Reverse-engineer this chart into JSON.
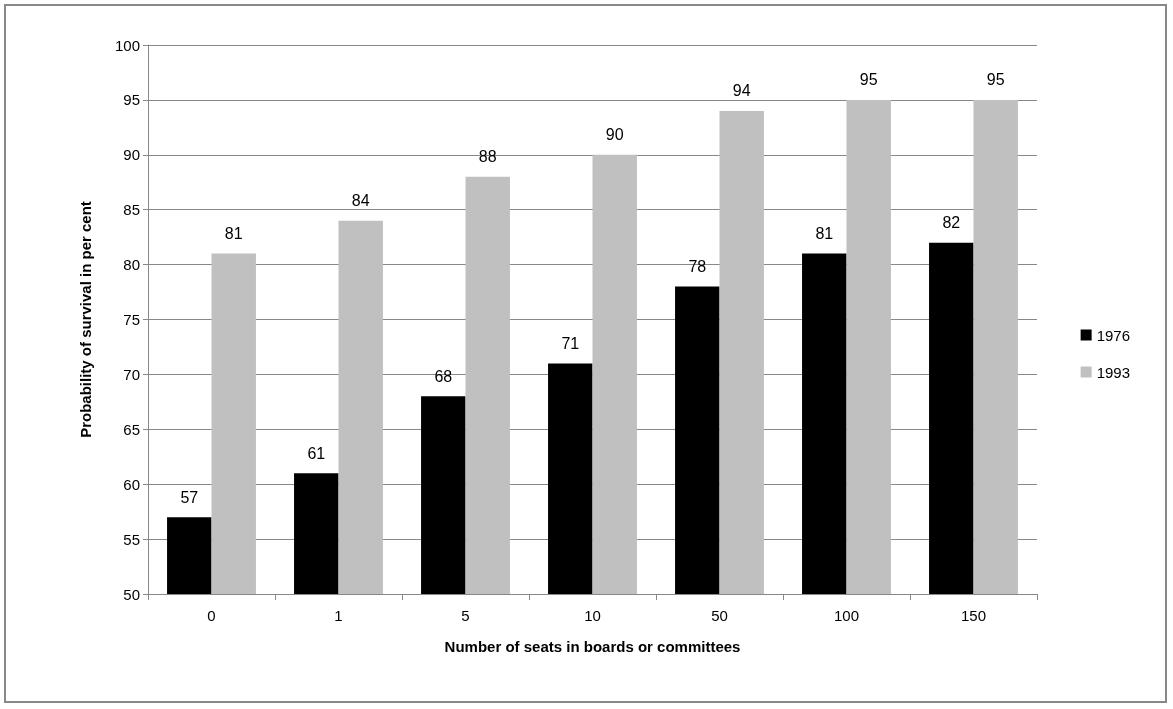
{
  "chart_data": {
    "type": "bar",
    "xlabel": "Number of seats in boards or committees",
    "ylabel": "Probability of survival in per cent",
    "categories": [
      "0",
      "1",
      "5",
      "10",
      "50",
      "100",
      "150"
    ],
    "series": [
      {
        "name": "1976",
        "color": "#000000",
        "values": [
          57,
          61,
          68,
          71,
          78,
          81,
          82
        ]
      },
      {
        "name": "1993",
        "color": "#c0c0c0",
        "values": [
          81,
          84,
          88,
          90,
          94,
          95,
          95
        ]
      }
    ],
    "ylim": [
      50,
      100
    ],
    "yticks": [
      50,
      55,
      60,
      65,
      70,
      75,
      80,
      85,
      90,
      95,
      100
    ],
    "grid": "y",
    "legend": "right",
    "data_labels": true
  }
}
